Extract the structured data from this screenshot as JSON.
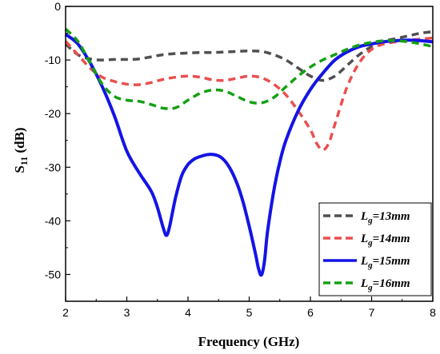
{
  "chart_data": {
    "type": "line",
    "xlabel": "Frequency (GHz)",
    "ylabel_main": "S",
    "ylabel_sub": "11",
    "ylabel_unit": " (dB)",
    "xlim": [
      2,
      8
    ],
    "ylim": [
      -55,
      0
    ],
    "xticks": [
      2,
      3,
      4,
      5,
      6,
      7,
      8
    ],
    "yticks": [
      0,
      -10,
      -20,
      -30,
      -40,
      -50
    ],
    "legend_position": "bottom-right",
    "series": [
      {
        "name": "Lg=13mm",
        "legend_main": "L",
        "legend_sub": "g",
        "legend_rest": "=13mm",
        "color": "#505050",
        "dash": "dashed",
        "x": [
          2.0,
          2.2,
          2.4,
          2.6,
          2.8,
          3.0,
          3.2,
          3.4,
          3.6,
          3.8,
          4.0,
          4.2,
          4.4,
          4.6,
          4.8,
          5.0,
          5.2,
          5.4,
          5.6,
          5.8,
          6.0,
          6.2,
          6.4,
          6.6,
          6.8,
          7.0,
          7.2,
          7.4,
          7.6,
          7.8,
          8.0
        ],
        "y": [
          -7.0,
          -9.0,
          -9.8,
          -10.0,
          -9.9,
          -9.9,
          -9.8,
          -9.4,
          -9.0,
          -8.8,
          -8.7,
          -8.6,
          -8.6,
          -8.5,
          -8.4,
          -8.3,
          -8.4,
          -9.0,
          -10.0,
          -11.5,
          -13.0,
          -13.8,
          -13.0,
          -11.0,
          -9.0,
          -7.5,
          -6.5,
          -6.0,
          -5.5,
          -5.0,
          -4.7
        ]
      },
      {
        "name": "Lg=14mm",
        "legend_main": "L",
        "legend_sub": "g",
        "legend_rest": "=14mm",
        "color": "#ea4f4f",
        "dash": "dashed",
        "x": [
          2.0,
          2.2,
          2.4,
          2.6,
          2.8,
          3.0,
          3.2,
          3.4,
          3.6,
          3.8,
          4.0,
          4.2,
          4.4,
          4.6,
          4.8,
          5.0,
          5.2,
          5.4,
          5.6,
          5.8,
          6.0,
          6.1,
          6.2,
          6.3,
          6.4,
          6.6,
          6.8,
          7.0,
          7.2,
          7.4,
          7.6,
          7.8,
          8.0
        ],
        "y": [
          -6.5,
          -9.0,
          -11.5,
          -13.2,
          -14.0,
          -14.5,
          -14.6,
          -14.2,
          -13.6,
          -13.2,
          -13.0,
          -13.2,
          -13.7,
          -13.8,
          -13.4,
          -13.0,
          -13.3,
          -14.5,
          -16.5,
          -19.5,
          -23.0,
          -25.5,
          -26.8,
          -25.5,
          -22.0,
          -15.0,
          -10.5,
          -8.0,
          -7.0,
          -6.6,
          -6.3,
          -6.1,
          -5.9
        ]
      },
      {
        "name": "Lg=15mm",
        "legend_main": "L",
        "legend_sub": "g",
        "legend_rest": "=15mm",
        "color": "#1414e6",
        "dash": "solid",
        "x": [
          2.0,
          2.2,
          2.4,
          2.6,
          2.8,
          3.0,
          3.2,
          3.4,
          3.5,
          3.6,
          3.65,
          3.7,
          3.8,
          3.9,
          4.0,
          4.1,
          4.2,
          4.35,
          4.5,
          4.6,
          4.7,
          4.8,
          4.9,
          5.0,
          5.1,
          5.15,
          5.2,
          5.25,
          5.3,
          5.4,
          5.5,
          5.6,
          5.8,
          6.0,
          6.2,
          6.4,
          6.6,
          6.8,
          7.0,
          7.2,
          7.4,
          7.6,
          7.8,
          8.0
        ],
        "y": [
          -5.2,
          -7.0,
          -10.5,
          -15.0,
          -20.5,
          -27.0,
          -31.0,
          -34.5,
          -37.5,
          -41.5,
          -42.7,
          -41.0,
          -35.5,
          -31.5,
          -29.5,
          -28.5,
          -28.0,
          -27.6,
          -27.9,
          -28.8,
          -30.5,
          -33.0,
          -36.5,
          -41.0,
          -46.0,
          -48.8,
          -50.1,
          -47.5,
          -42.0,
          -34.5,
          -29.0,
          -25.0,
          -19.5,
          -15.5,
          -12.5,
          -10.0,
          -8.5,
          -7.5,
          -7.0,
          -6.6,
          -6.4,
          -6.3,
          -6.4,
          -6.6
        ]
      },
      {
        "name": "Lg=16mm",
        "legend_main": "L",
        "legend_sub": "g",
        "legend_rest": "=16mm",
        "color": "#14a014",
        "dash": "dashed",
        "x": [
          2.0,
          2.2,
          2.4,
          2.6,
          2.8,
          3.0,
          3.2,
          3.4,
          3.6,
          3.8,
          4.0,
          4.2,
          4.4,
          4.6,
          4.8,
          5.0,
          5.2,
          5.4,
          5.6,
          5.8,
          6.0,
          6.2,
          6.4,
          6.6,
          6.8,
          7.0,
          7.2,
          7.4,
          7.6,
          7.8,
          8.0
        ],
        "y": [
          -4.2,
          -6.5,
          -10.5,
          -14.5,
          -16.8,
          -17.5,
          -17.7,
          -18.3,
          -19.0,
          -18.9,
          -17.5,
          -16.2,
          -15.6,
          -15.8,
          -16.8,
          -17.8,
          -18.0,
          -17.0,
          -15.0,
          -13.0,
          -11.3,
          -10.0,
          -9.0,
          -8.0,
          -7.2,
          -6.7,
          -6.4,
          -6.4,
          -6.6,
          -7.0,
          -7.5
        ]
      }
    ]
  }
}
